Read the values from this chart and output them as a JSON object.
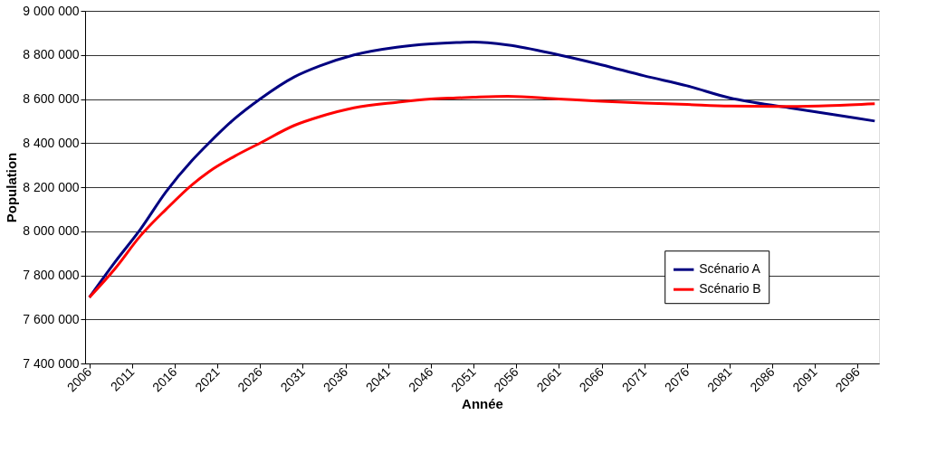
{
  "chart_data": {
    "type": "line",
    "xlabel": "Année",
    "ylabel": "Population",
    "x": [
      2006,
      2009,
      2012,
      2015,
      2018,
      2020,
      2023,
      2026,
      2030,
      2033,
      2037,
      2042,
      2046,
      2049,
      2051,
      2055,
      2061,
      2066,
      2071,
      2076,
      2081,
      2088,
      2093,
      2098
    ],
    "series": [
      {
        "name": "Scénario A",
        "color": "#000080",
        "values": [
          7700000,
          7860000,
          8010000,
          8180000,
          8320000,
          8400000,
          8510000,
          8600000,
          8700000,
          8750000,
          8800000,
          8835000,
          8850000,
          8856000,
          8858000,
          8845000,
          8800000,
          8755000,
          8705000,
          8660000,
          8605000,
          8560000,
          8530000,
          8500000
        ]
      },
      {
        "name": "Scénario B",
        "color": "#ff0000",
        "values": [
          7700000,
          7830000,
          7980000,
          8100000,
          8210000,
          8270000,
          8340000,
          8400000,
          8480000,
          8520000,
          8560000,
          8585000,
          8600000,
          8605000,
          8608000,
          8612000,
          8600000,
          8590000,
          8582000,
          8575000,
          8568000,
          8566000,
          8570000,
          8578000
        ]
      }
    ],
    "xlim": [
      2005.5,
      2098.5
    ],
    "xticks": [
      2006,
      2011,
      2016,
      2021,
      2026,
      2031,
      2036,
      2041,
      2046,
      2051,
      2056,
      2061,
      2066,
      2071,
      2076,
      2081,
      2086,
      2091,
      2096
    ],
    "ylim": [
      7400000,
      9000000
    ],
    "yticks": [
      {
        "value": 7400000,
        "label": "7 400 000"
      },
      {
        "value": 7600000,
        "label": "7 600 000"
      },
      {
        "value": 7800000,
        "label": "7 800 000"
      },
      {
        "value": 8000000,
        "label": "8 000 000"
      },
      {
        "value": 8200000,
        "label": "8 200 000"
      },
      {
        "value": 8400000,
        "label": "8 400 000"
      },
      {
        "value": 8600000,
        "label": "8 600 000"
      },
      {
        "value": 8800000,
        "label": "8 800 000"
      },
      {
        "value": 9000000,
        "label": "9 000 000"
      }
    ],
    "grid": "y",
    "legend": "bottom right",
    "marker": "none",
    "line_style": "solid"
  }
}
